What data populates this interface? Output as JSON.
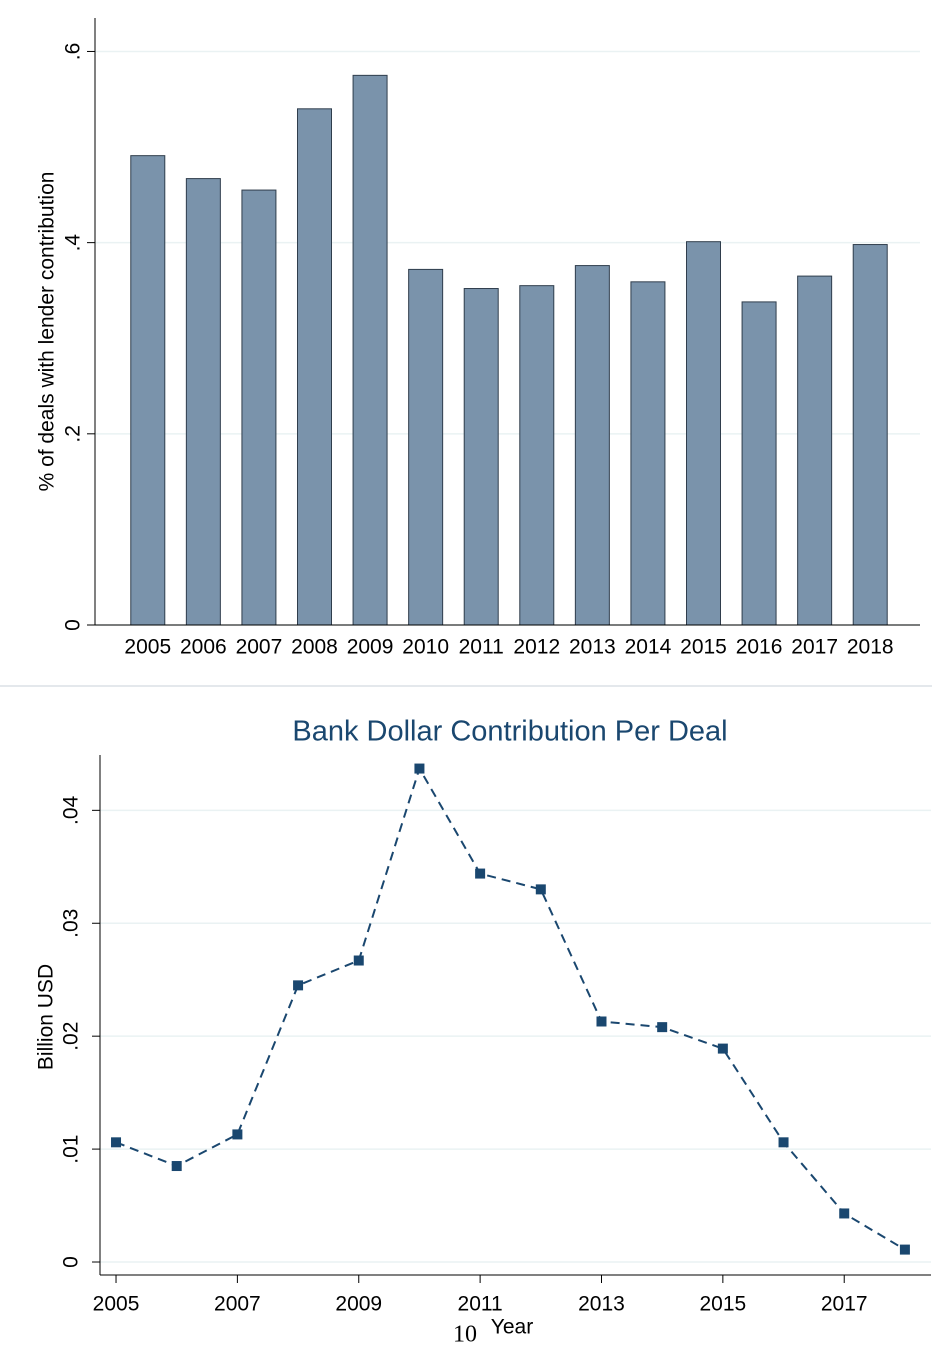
{
  "chart_data": [
    {
      "type": "bar",
      "y_label": "% of deals with lender contribution",
      "categories": [
        "2005",
        "2006",
        "2007",
        "2008",
        "2009",
        "2010",
        "2011",
        "2012",
        "2013",
        "2014",
        "2015",
        "2016",
        "2017",
        "2018"
      ],
      "values": [
        0.491,
        0.467,
        0.455,
        0.54,
        0.575,
        0.372,
        0.352,
        0.355,
        0.376,
        0.359,
        0.401,
        0.338,
        0.365,
        0.398
      ],
      "color": "#7a93ab",
      "ylim": [
        0,
        0.635
      ],
      "yticks": [
        0,
        {
          "value": 0.2,
          "label": ".2"
        },
        {
          "value": 0.4,
          "label": ".4"
        },
        {
          "value": 0.6,
          "label": ".6"
        }
      ],
      "grid": true
    },
    {
      "type": "line",
      "title": "Bank Dollar Contribution Per Deal",
      "y_label": "Billion USD",
      "x_label": "Year",
      "x": [
        2005,
        2006,
        2007,
        2008,
        2009,
        2010,
        2011,
        2012,
        2013,
        2014,
        2015,
        2016,
        2017,
        2018
      ],
      "values": [
        0.0106,
        0.0085,
        0.0113,
        0.0245,
        0.0267,
        0.0437,
        0.0344,
        0.033,
        0.0213,
        0.0208,
        0.0189,
        0.0106,
        0.0043,
        0.0011
      ],
      "color": "#1a476f",
      "xlim": [
        2004.736,
        2018.43
      ],
      "xticks": [
        2005,
        2007,
        2009,
        2011,
        2013,
        2015,
        2017
      ],
      "ylim": [
        -0.00115,
        0.0449
      ],
      "yticks": [
        0,
        {
          "value": 0.01,
          "label": ".01"
        },
        {
          "value": 0.02,
          "label": ".02"
        },
        {
          "value": 0.03,
          "label": ".03"
        },
        {
          "value": 0.04,
          "label": ".04"
        }
      ],
      "grid": true
    }
  ],
  "page_number": "10"
}
